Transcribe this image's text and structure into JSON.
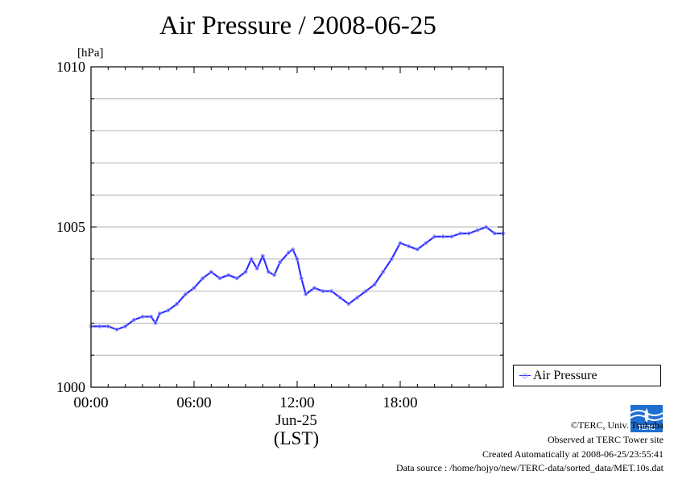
{
  "chart_data": {
    "type": "line",
    "title": "Air Pressure / 2008-06-25",
    "ylabel": "[hPa]",
    "xlabel_date": "Jun-25",
    "xlabel_tz": "(LST)",
    "ylim": [
      1000,
      1010
    ],
    "xlim": [
      "00:00",
      "24:00"
    ],
    "y_ticks": [
      {
        "value": 1000,
        "label": "1000"
      },
      {
        "value": 1005,
        "label": "1005"
      },
      {
        "value": 1010,
        "label": "1010"
      }
    ],
    "x_ticks": [
      {
        "value": "00:00",
        "label": "00:00"
      },
      {
        "value": "06:00",
        "label": "06:00"
      },
      {
        "value": "12:00",
        "label": "12:00"
      },
      {
        "value": "18:00",
        "label": "18:00"
      }
    ],
    "grid": true,
    "legend_position": "right",
    "colors": {
      "line": "#3030ff",
      "marker": "#9a9aff",
      "grid": "#b4b4b4"
    },
    "series": [
      {
        "name": "Air Pressure",
        "x": [
          "00:00",
          "00:30",
          "01:00",
          "01:30",
          "02:00",
          "02:30",
          "03:00",
          "03:30",
          "03:45",
          "04:00",
          "04:30",
          "05:00",
          "05:30",
          "06:00",
          "06:30",
          "07:00",
          "07:30",
          "08:00",
          "08:30",
          "09:00",
          "09:20",
          "09:40",
          "10:00",
          "10:20",
          "10:40",
          "11:00",
          "11:30",
          "11:45",
          "12:00",
          "12:15",
          "12:30",
          "13:00",
          "13:30",
          "14:00",
          "14:30",
          "15:00",
          "15:30",
          "16:00",
          "16:30",
          "17:00",
          "17:30",
          "18:00",
          "18:30",
          "19:00",
          "19:30",
          "20:00",
          "20:30",
          "21:00",
          "21:30",
          "22:00",
          "22:30",
          "23:00",
          "23:30",
          "23:59"
        ],
        "values": [
          1001.9,
          1001.9,
          1001.9,
          1001.8,
          1001.9,
          1002.1,
          1002.2,
          1002.2,
          1002.0,
          1002.3,
          1002.4,
          1002.6,
          1002.9,
          1003.1,
          1003.4,
          1003.6,
          1003.4,
          1003.5,
          1003.4,
          1003.6,
          1004.0,
          1003.7,
          1004.1,
          1003.6,
          1003.5,
          1003.9,
          1004.2,
          1004.3,
          1004.0,
          1003.4,
          1002.9,
          1003.1,
          1003.0,
          1003.0,
          1002.8,
          1002.6,
          1002.8,
          1003.0,
          1003.2,
          1003.6,
          1004.0,
          1004.5,
          1004.4,
          1004.3,
          1004.5,
          1004.7,
          1004.7,
          1004.7,
          1004.8,
          1004.8,
          1004.9,
          1005.0,
          1004.8,
          1004.8
        ]
      }
    ]
  },
  "footer": {
    "copyright": "©TERC, Univ. Tsukuba",
    "observed": "Observed at TERC Tower site",
    "created": "Created Automatically at 2008-06-25/23:55:41",
    "source": "Data source : /home/hojyo/new/TERC-data/sorted_data/MET.10s.dat"
  },
  "logo": {
    "text": "TERC",
    "icon": "terc-logo-icon"
  }
}
